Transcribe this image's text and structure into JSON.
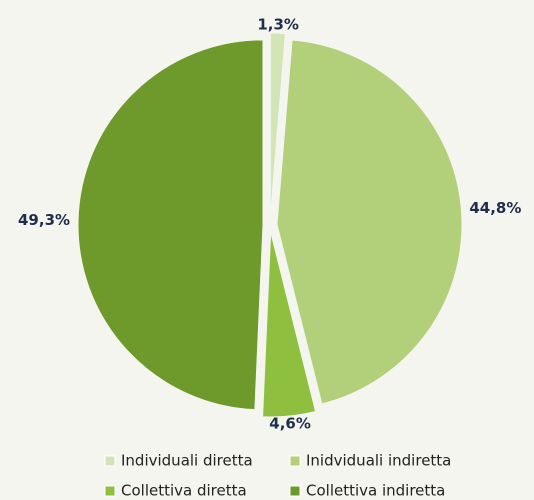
{
  "chart_data": {
    "type": "pie",
    "categories": [
      "Individuali diretta",
      "Inidviduali indiretta",
      "Collettiva diretta",
      "Collettiva indiretta"
    ],
    "values": [
      1.3,
      44.8,
      4.6,
      49.3
    ],
    "value_labels": [
      "1,3%",
      "44,8%",
      "4,6%",
      "49,3%"
    ],
    "colors": [
      "#d3e4b6",
      "#b2d07a",
      "#8fbf3e",
      "#6e9a2b"
    ],
    "legend": "bottom"
  }
}
